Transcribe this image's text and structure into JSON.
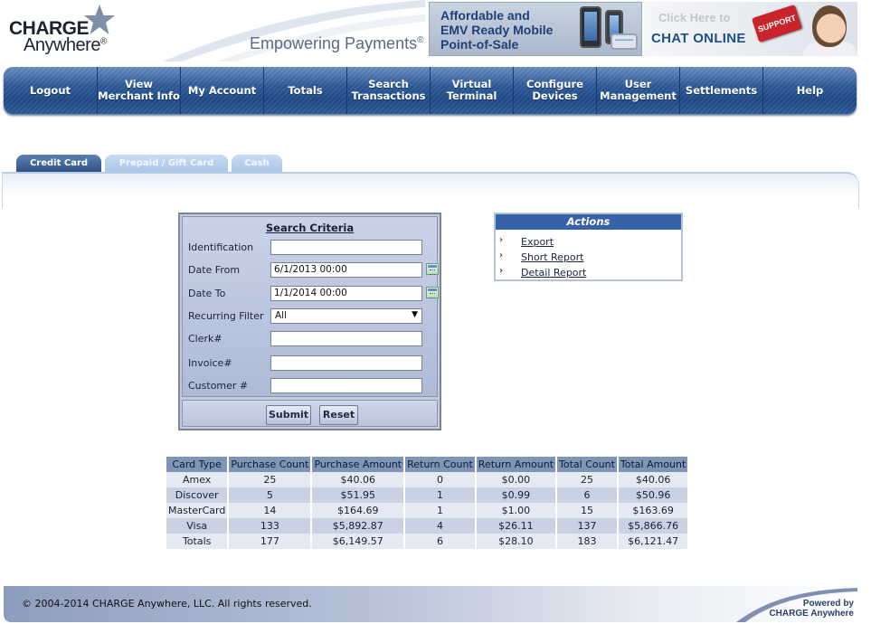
{
  "header": {
    "logo_line1": "CHARGE",
    "logo_line2": "Anywhere",
    "logo_reg": "®",
    "tagline": "Empowering Payments",
    "tagline_reg": "®",
    "ad_lines": [
      "Affordable and",
      "EMV Ready Mobile",
      "Point-of-Sale"
    ],
    "chat_click": "Click Here to",
    "chat_online": "CHAT ONLINE",
    "support_key": "SUPPORT"
  },
  "nav": {
    "items": [
      {
        "label": "Logout"
      },
      {
        "label": "View\nMerchant Info"
      },
      {
        "label": "My Account"
      },
      {
        "label": "Totals"
      },
      {
        "label": "Search\nTransactions"
      },
      {
        "label": "Virtual\nTerminal"
      },
      {
        "label": "Configure\nDevices"
      },
      {
        "label": "User\nManagement"
      },
      {
        "label": "Settlements"
      },
      {
        "label": "Help"
      }
    ]
  },
  "tabs": [
    {
      "label": "Credit Card",
      "active": true
    },
    {
      "label": "Prepaid / Gift Card",
      "active": false
    },
    {
      "label": "Cash",
      "active": false
    }
  ],
  "search": {
    "title": "Search Criteria",
    "fields": [
      {
        "label": "Identification",
        "value": ""
      },
      {
        "label": "Date From",
        "value": "6/1/2013 00:00"
      },
      {
        "label": "Date To",
        "value": "1/1/2014 00:00"
      },
      {
        "label": "Recurring Filter",
        "value": "All"
      },
      {
        "label": "Clerk#",
        "value": ""
      },
      {
        "label": "Invoice#",
        "value": ""
      },
      {
        "label": "Customer #",
        "value": ""
      }
    ],
    "submit_label": "Submit",
    "reset_label": "Reset"
  },
  "actions": {
    "title": "Actions",
    "links": [
      "Export",
      "Short Report",
      "Detail Report"
    ]
  },
  "totals_table": {
    "headers": [
      "Card Type",
      "Purchase Count",
      "Purchase Amount",
      "Return Count",
      "Return Amount",
      "Total Count",
      "Total Amount"
    ],
    "rows": [
      [
        "Amex",
        "25",
        "$40.06",
        "0",
        "$0.00",
        "25",
        "$40.06"
      ],
      [
        "Discover",
        "5",
        "$51.95",
        "1",
        "$0.99",
        "6",
        "$50.96"
      ],
      [
        "MasterCard",
        "14",
        "$164.69",
        "1",
        "$1.00",
        "15",
        "$163.69"
      ],
      [
        "Visa",
        "133",
        "$5,892.87",
        "4",
        "$26.11",
        "137",
        "$5,866.76"
      ],
      [
        "Totals",
        "177",
        "$6,149.57",
        "6",
        "$28.10",
        "183",
        "$6,121.47"
      ]
    ]
  },
  "footer": {
    "copyright": "© 2004-2014 CHARGE Anywhere, LLC. All rights reserved.",
    "powered_line1": "Powered by",
    "powered_line2": "CHARGE Anywhere"
  },
  "colors": {
    "nav_blue": "#2e5b9a",
    "actions_header": "#3862a7",
    "table_header": "#7f95b8",
    "action_bullet": "#9b1b1b"
  }
}
